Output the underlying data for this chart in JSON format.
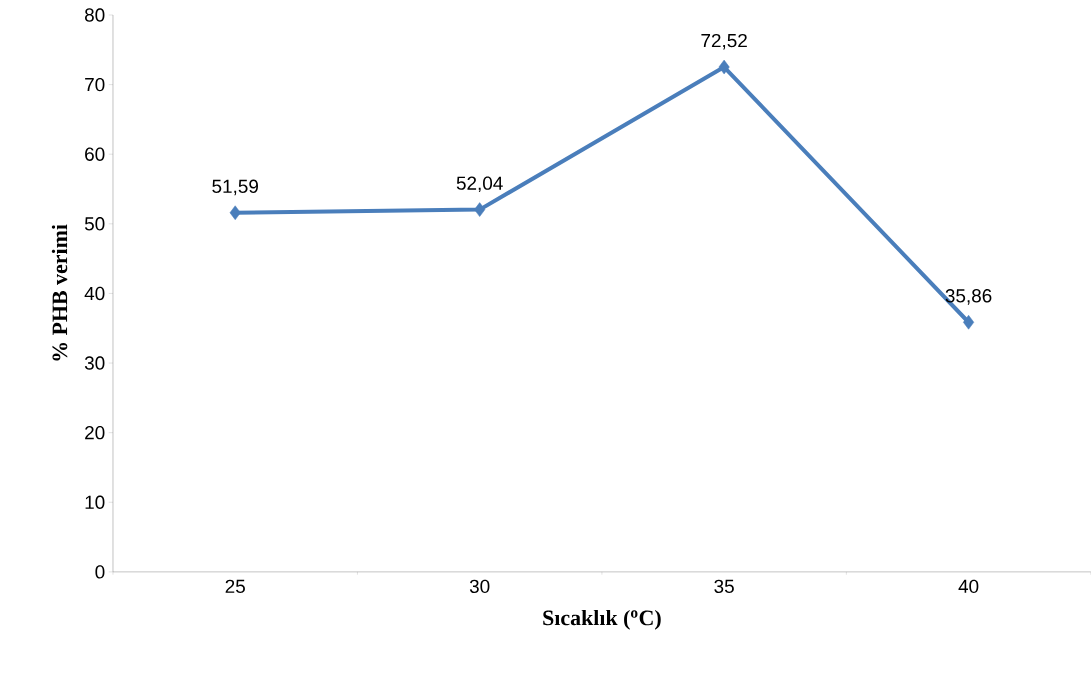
{
  "chart_data": {
    "type": "line",
    "xlabel": "Sıcaklık ($^{o}$C)",
    "ylabel": "% PHB verimi",
    "categories": [
      "25",
      "30",
      "35",
      "40"
    ],
    "series": [
      {
        "color": "#4a7ebb",
        "values": [
          51.59,
          52.04,
          72.52,
          35.86
        ],
        "value_labels": [
          "51,59",
          "52,04",
          "72,52",
          "35,86"
        ]
      }
    ],
    "ylim": [
      0,
      80
    ],
    "yticks": [
      0,
      10,
      20,
      30,
      40,
      50,
      60,
      70,
      80
    ],
    "grid": false,
    "marker": "diamond",
    "line_style": "solid"
  }
}
